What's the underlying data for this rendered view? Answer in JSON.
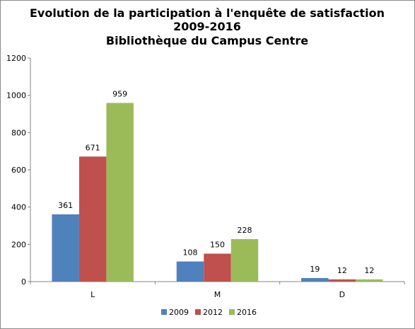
{
  "chart_data": {
    "type": "bar",
    "title": [
      "Evolution de la participation  à l'enquête de satisfaction",
      "2009-2016",
      "Bibliothèque du Campus Centre"
    ],
    "xlabel": "",
    "ylabel": "",
    "categories": [
      "L",
      "M",
      "D"
    ],
    "series": [
      {
        "name": "2009",
        "color": "#4f81bd",
        "values": [
          361,
          108,
          19
        ]
      },
      {
        "name": "2012",
        "color": "#c0504d",
        "values": [
          671,
          150,
          12
        ]
      },
      {
        "name": "2016",
        "color": "#9bbb59",
        "values": [
          959,
          228,
          12
        ]
      }
    ],
    "ylim": [
      0,
      1200
    ],
    "yticks": [
      0,
      200,
      400,
      600,
      800,
      1000,
      1200
    ],
    "grid": false,
    "legend": "bottom"
  }
}
